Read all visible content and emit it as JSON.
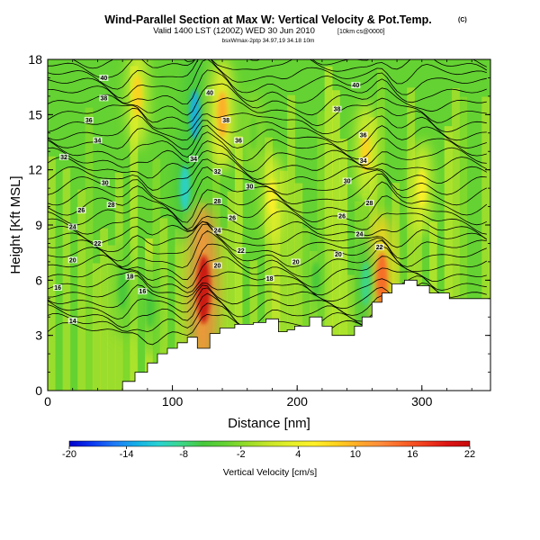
{
  "header": {
    "title_main": "Wind-Parallel Section at Max W: Vertical Velocity & Pot.Temp.",
    "title_mark": "(C)",
    "valid_prefix": "Valid 1400 LST (1200Z) WED 30 Jun 2010",
    "valid_suffix": "[10km cs@0000]",
    "subtitle": "bsxWmax-2ptp 34.97,19 34.18 10m"
  },
  "chart_data": {
    "type": "heatmap",
    "xlabel": "Distance [nm]",
    "ylabel": "Height [Kft MSL]",
    "xlim": [
      0,
      355
    ],
    "ylim": [
      0,
      18
    ],
    "x_ticks": [
      0,
      100,
      200,
      300
    ],
    "y_ticks": [
      0,
      3,
      6,
      9,
      12,
      15,
      18
    ],
    "colorbar": {
      "label": "Vertical Velocity [cm/s]",
      "ticks": [
        -20,
        -14,
        -8,
        -2,
        4,
        10,
        16,
        22
      ],
      "colors": [
        "#0000cc",
        "#0a36f0",
        "#1e78f5",
        "#14aee6",
        "#28d2d2",
        "#3cd78c",
        "#46c83c",
        "#64d232",
        "#96dc28",
        "#c8e628",
        "#e6f028",
        "#fff028",
        "#ffd21e",
        "#ffaa28",
        "#ff8c3c",
        "#fa6428",
        "#f03c1e",
        "#dc1414",
        "#c80a0a"
      ],
      "range": [
        -20,
        22
      ]
    },
    "terrain": [
      [
        0,
        0
      ],
      [
        60,
        0
      ],
      [
        60,
        0.5
      ],
      [
        70,
        0.5
      ],
      [
        70,
        1
      ],
      [
        80,
        1
      ],
      [
        80,
        1.5
      ],
      [
        88,
        1.5
      ],
      [
        88,
        2
      ],
      [
        96,
        2
      ],
      [
        96,
        2.3
      ],
      [
        104,
        2.3
      ],
      [
        104,
        2.6
      ],
      [
        112,
        2.6
      ],
      [
        112,
        2.9
      ],
      [
        120,
        2.9
      ],
      [
        120,
        2.3
      ],
      [
        130,
        2.3
      ],
      [
        130,
        3.1
      ],
      [
        138,
        3.1
      ],
      [
        138,
        3.4
      ],
      [
        150,
        3.4
      ],
      [
        150,
        3.6
      ],
      [
        165,
        3.6
      ],
      [
        165,
        3.7
      ],
      [
        175,
        3.7
      ],
      [
        175,
        3.9
      ],
      [
        185,
        3.9
      ],
      [
        185,
        3.2
      ],
      [
        192,
        3.2
      ],
      [
        192,
        3.3
      ],
      [
        198,
        3.3
      ],
      [
        198,
        3.5
      ],
      [
        210,
        3.5
      ],
      [
        210,
        4
      ],
      [
        220,
        4
      ],
      [
        220,
        3.5
      ],
      [
        228,
        3.5
      ],
      [
        228,
        3
      ],
      [
        246,
        3
      ],
      [
        246,
        3.5
      ],
      [
        252,
        3.5
      ],
      [
        252,
        4
      ],
      [
        260,
        4
      ],
      [
        260,
        4.8
      ],
      [
        268,
        4.8
      ],
      [
        268,
        5.3
      ],
      [
        276,
        5.3
      ],
      [
        276,
        5.8
      ],
      [
        286,
        5.8
      ],
      [
        286,
        6
      ],
      [
        296,
        6
      ],
      [
        296,
        5.7
      ],
      [
        306,
        5.7
      ],
      [
        306,
        5.3
      ],
      [
        322,
        5.3
      ],
      [
        322,
        5
      ],
      [
        355,
        5
      ],
      [
        355,
        0
      ]
    ],
    "updrafts": [
      {
        "x": 125,
        "y": 5.5,
        "w": 22
      },
      {
        "x": 268,
        "y": 6.0,
        "w": 15
      },
      {
        "x": 140,
        "y": 15,
        "w": 10
      },
      {
        "x": 72,
        "y": 16,
        "w": 8
      },
      {
        "x": 255,
        "y": 13,
        "w": 7
      },
      {
        "x": 300,
        "y": 11,
        "w": 6
      },
      {
        "x": 180,
        "y": 10.5,
        "w": 5
      }
    ],
    "downdrafts": [
      {
        "x": 118,
        "y": 15,
        "w": -12
      },
      {
        "x": 110,
        "y": 11,
        "w": -10
      },
      {
        "x": 255,
        "y": 5.8,
        "w": -9
      },
      {
        "x": 60,
        "y": 5.5,
        "w": -7
      },
      {
        "x": 82,
        "y": 4.5,
        "w": -7
      },
      {
        "x": 215,
        "y": 6,
        "w": -5
      },
      {
        "x": 165,
        "y": 14,
        "w": -4
      }
    ],
    "theta_labels": [
      {
        "x": 45,
        "y": 17.0,
        "text": "40"
      },
      {
        "x": 130,
        "y": 16.2,
        "text": "40"
      },
      {
        "x": 247,
        "y": 16.6,
        "text": "40"
      },
      {
        "x": 45,
        "y": 15.9,
        "text": "38"
      },
      {
        "x": 143,
        "y": 14.7,
        "text": "38"
      },
      {
        "x": 232,
        "y": 15.3,
        "text": "38"
      },
      {
        "x": 33,
        "y": 14.7,
        "text": "36"
      },
      {
        "x": 153,
        "y": 13.6,
        "text": "36"
      },
      {
        "x": 253,
        "y": 13.9,
        "text": "36"
      },
      {
        "x": 40,
        "y": 13.6,
        "text": "34"
      },
      {
        "x": 117,
        "y": 12.6,
        "text": "34"
      },
      {
        "x": 253,
        "y": 12.5,
        "text": "34"
      },
      {
        "x": 13,
        "y": 12.7,
        "text": "32"
      },
      {
        "x": 136,
        "y": 11.9,
        "text": "32"
      },
      {
        "x": 46,
        "y": 11.3,
        "text": "30"
      },
      {
        "x": 162,
        "y": 11.1,
        "text": "30"
      },
      {
        "x": 240,
        "y": 11.4,
        "text": "30"
      },
      {
        "x": 51,
        "y": 10.1,
        "text": "28"
      },
      {
        "x": 136,
        "y": 10.3,
        "text": "28"
      },
      {
        "x": 258,
        "y": 10.2,
        "text": "28"
      },
      {
        "x": 27,
        "y": 9.8,
        "text": "26"
      },
      {
        "x": 148,
        "y": 9.4,
        "text": "26"
      },
      {
        "x": 236,
        "y": 9.5,
        "text": "26"
      },
      {
        "x": 20,
        "y": 8.9,
        "text": "24"
      },
      {
        "x": 136,
        "y": 8.7,
        "text": "24"
      },
      {
        "x": 250,
        "y": 8.5,
        "text": "24"
      },
      {
        "x": 40,
        "y": 8.0,
        "text": "22"
      },
      {
        "x": 155,
        "y": 7.6,
        "text": "22"
      },
      {
        "x": 266,
        "y": 7.8,
        "text": "22"
      },
      {
        "x": 20,
        "y": 7.1,
        "text": "20"
      },
      {
        "x": 136,
        "y": 6.8,
        "text": "20"
      },
      {
        "x": 199,
        "y": 7.0,
        "text": "20"
      },
      {
        "x": 233,
        "y": 7.4,
        "text": "20"
      },
      {
        "x": 66,
        "y": 6.2,
        "text": "18"
      },
      {
        "x": 178,
        "y": 6.1,
        "text": "18"
      },
      {
        "x": 8,
        "y": 5.6,
        "text": "16"
      },
      {
        "x": 76,
        "y": 5.4,
        "text": "16"
      },
      {
        "x": 20,
        "y": 3.8,
        "text": "14"
      }
    ]
  },
  "colors": {
    "background": "#ffffff",
    "contour": "#000000",
    "field_base": "#64d232"
  }
}
